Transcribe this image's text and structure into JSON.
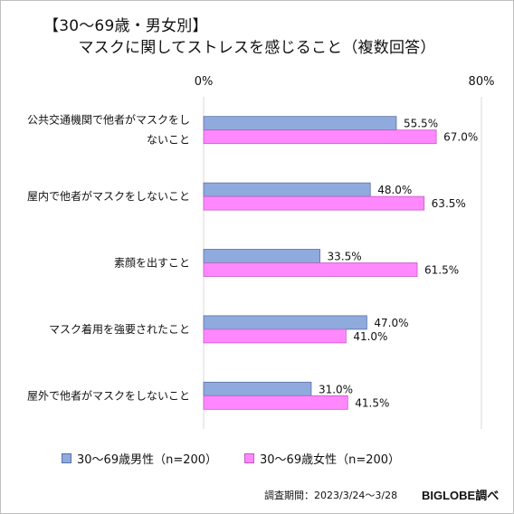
{
  "chart_data": {
    "type": "bar",
    "orientation": "horizontal",
    "title_line1": "【30～69歳・男女別】",
    "title_line2": "マスクに関してストレスを感じること（複数回答）",
    "x_tick_labels": [
      "0%",
      "80%"
    ],
    "xlim": [
      0,
      80
    ],
    "grid": true,
    "legend_position": "bottom",
    "categories": [
      [
        "公共交通機関で他者がマスクをし",
        "ないこと"
      ],
      [
        "屋内で他者がマスクをしないこと"
      ],
      [
        "素顔を出すこと"
      ],
      [
        "マスク着用を強要されたこと"
      ],
      [
        "屋外で他者がマスクをしないこと"
      ]
    ],
    "series": [
      {
        "name": "30～69歳男性（n=200）",
        "color": "#8faadc",
        "stroke": "#5a6fa8",
        "values": [
          55.5,
          48.0,
          33.5,
          47.0,
          31.0
        ],
        "labels": [
          "55.5%",
          "48.0%",
          "33.5%",
          "47.0%",
          "31.0%"
        ]
      },
      {
        "name": "30～69歳女性（n=200）",
        "color": "#ff88ff",
        "stroke": "#c35bc3",
        "values": [
          67.0,
          63.5,
          61.5,
          41.0,
          41.5
        ],
        "labels": [
          "67.0%",
          "63.5%",
          "61.5%",
          "41.0%",
          "41.5%"
        ]
      }
    ]
  },
  "footer": {
    "source": "調査期間：2023/3/24～3/28",
    "brand": "BIGLOBE調べ"
  }
}
